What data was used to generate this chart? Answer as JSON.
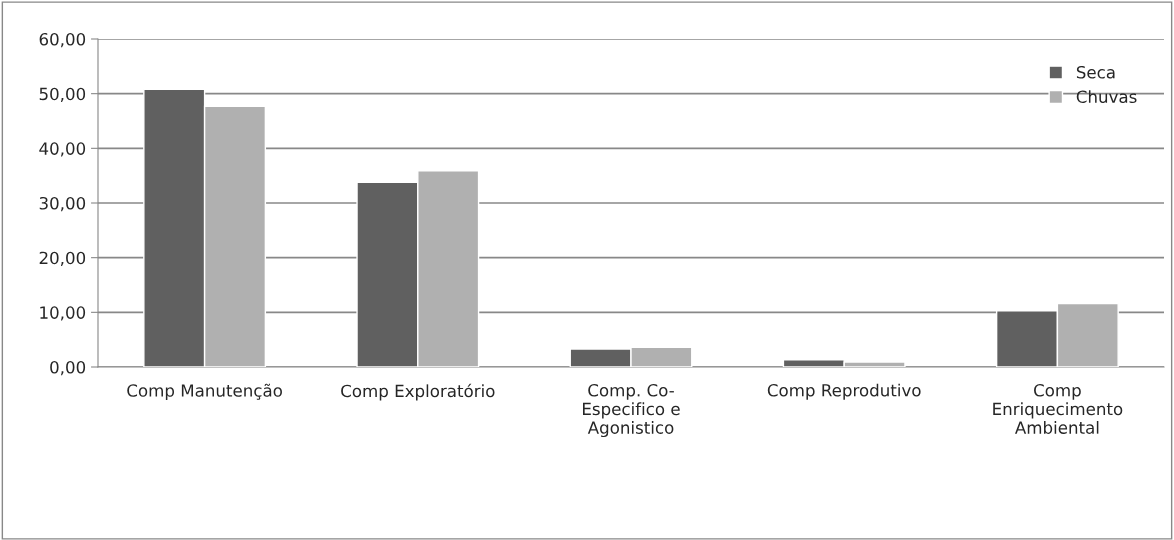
{
  "chart_data": {
    "type": "bar",
    "categories": [
      "Comp Manutenção",
      "Comp Exploratório",
      "Comp. Co-\nEspecifico e\nAgonistico",
      "Comp Reprodutivo",
      "Comp\nEnriquecimento\nAmbiental"
    ],
    "series": [
      {
        "name": "Seca",
        "color": "#606060",
        "values": [
          50.8,
          33.8,
          3.3,
          1.3,
          10.3
        ]
      },
      {
        "name": "Chuvas",
        "color": "#b0b0b0",
        "values": [
          47.7,
          35.9,
          3.6,
          0.9,
          11.6
        ]
      }
    ],
    "ylim": [
      0,
      60
    ],
    "yticks": [
      {
        "value": 0,
        "label": "0,00"
      },
      {
        "value": 10,
        "label": "10,00"
      },
      {
        "value": 20,
        "label": "20,00"
      },
      {
        "value": 30,
        "label": "30,00"
      },
      {
        "value": 40,
        "label": "40,00"
      },
      {
        "value": 50,
        "label": "50,00"
      },
      {
        "value": 60,
        "label": "60,00"
      }
    ],
    "grid": "y",
    "legend": "top right"
  }
}
